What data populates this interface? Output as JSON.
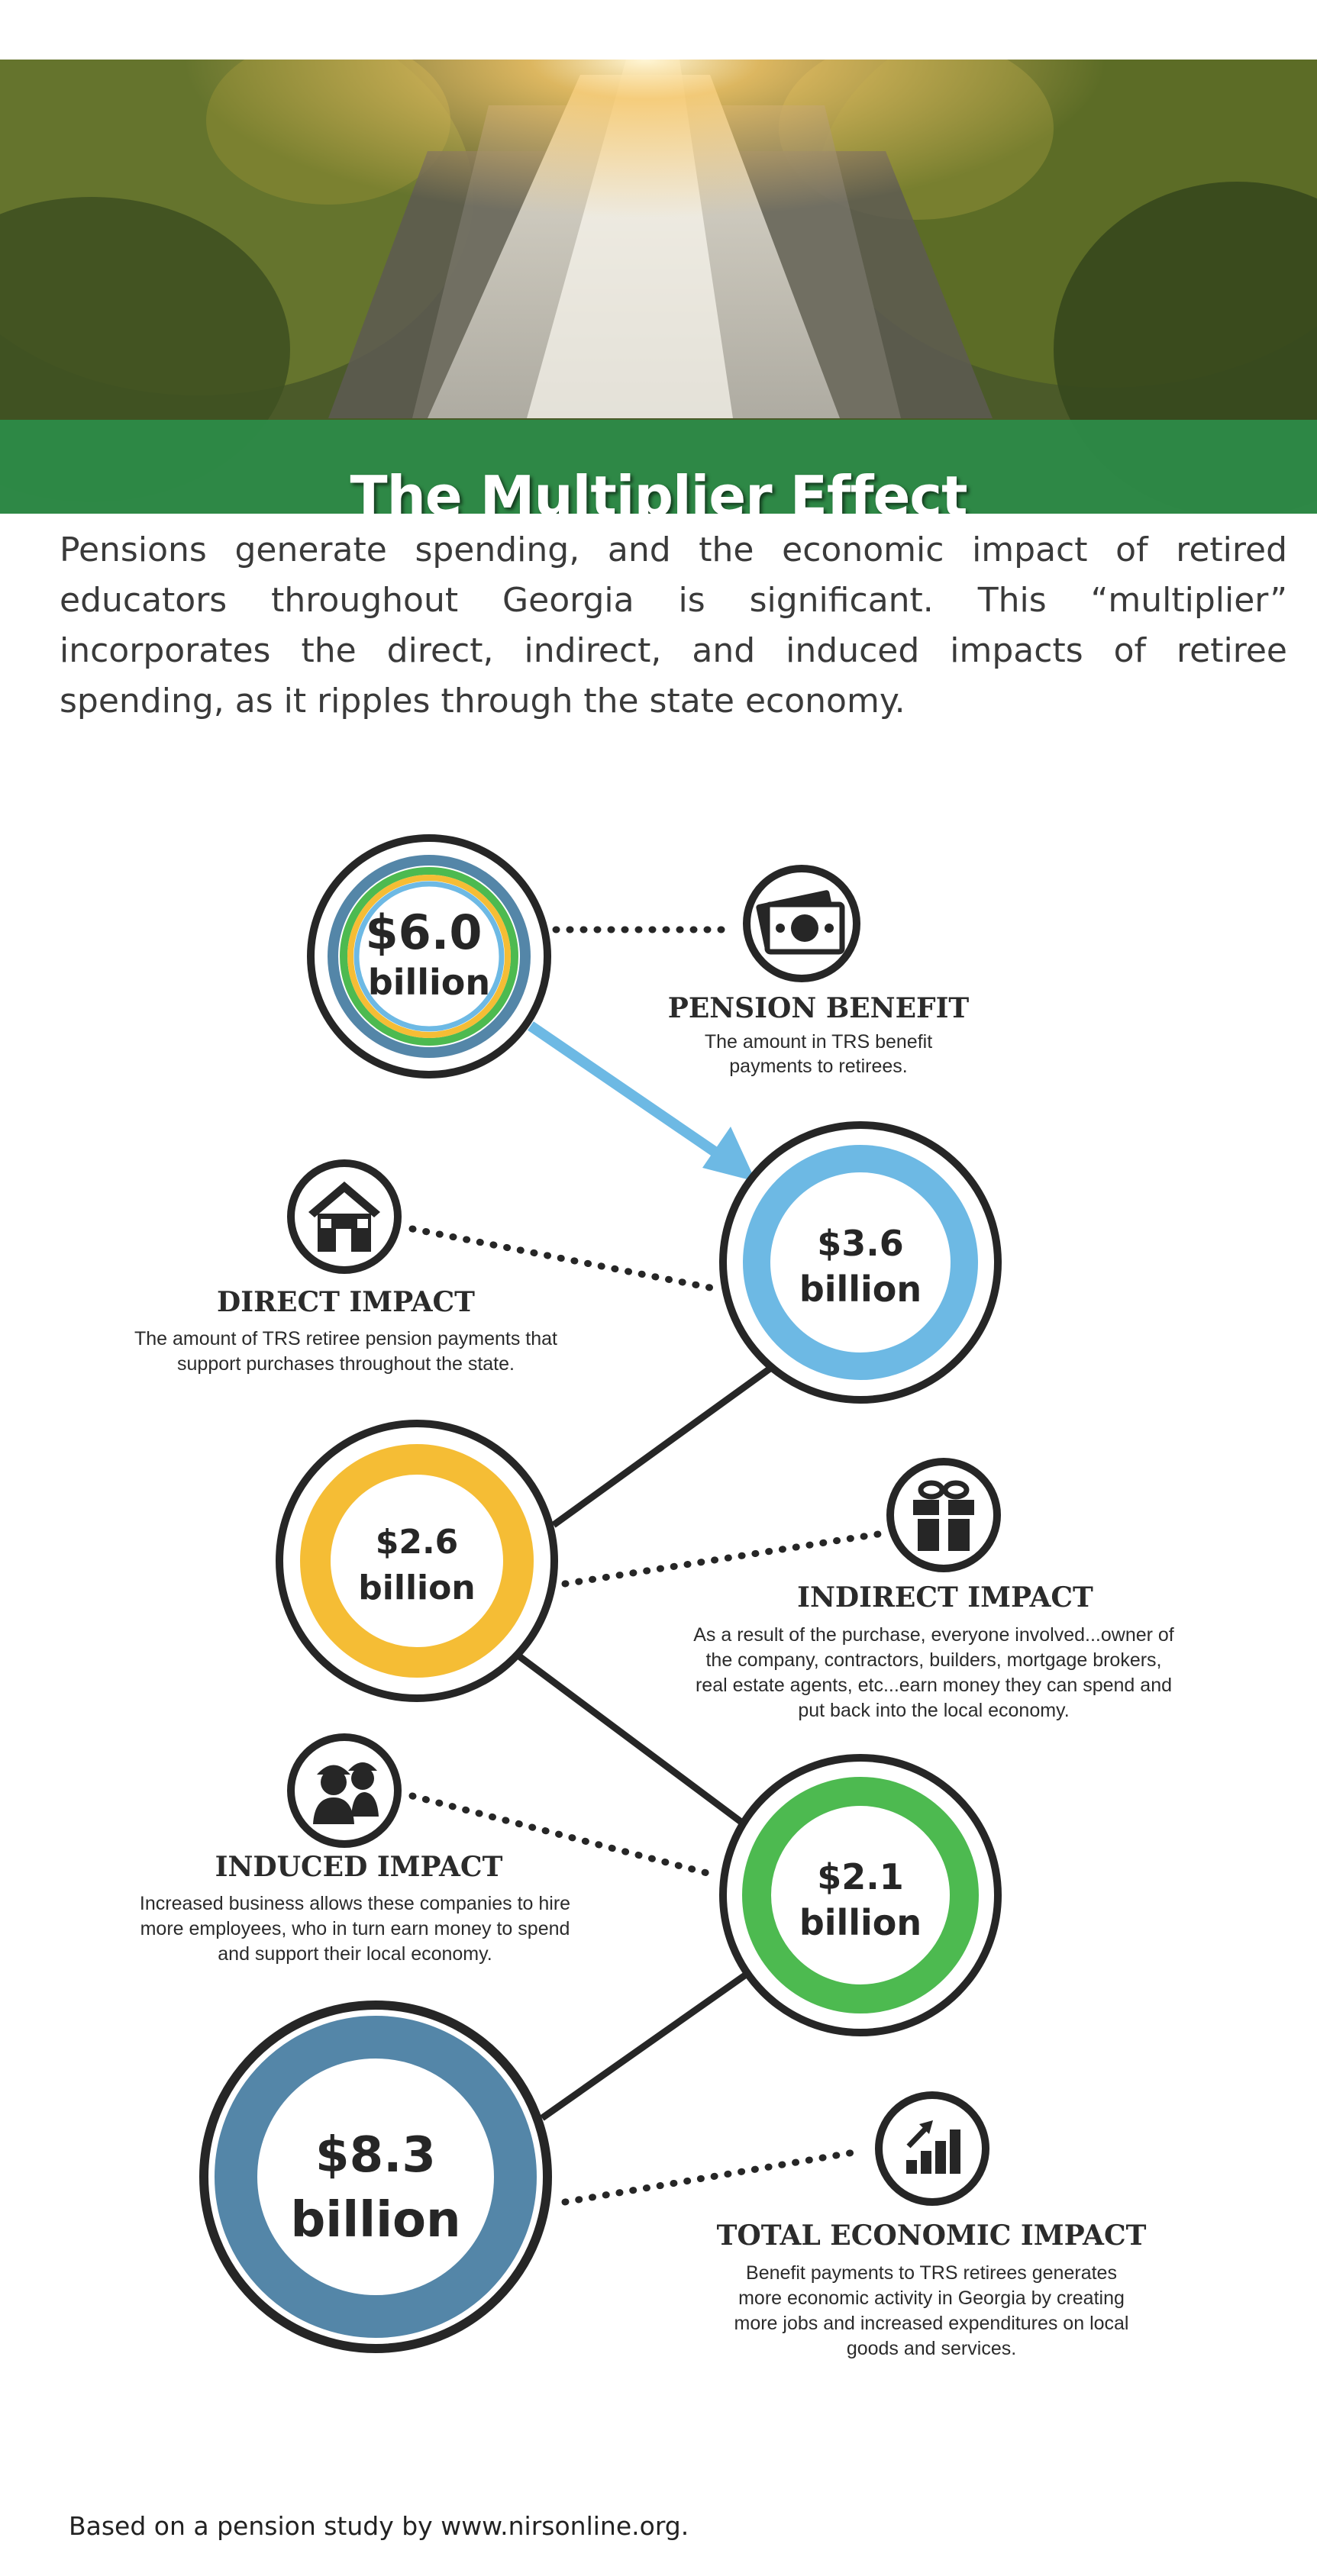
{
  "title": "The Multiplier Effect",
  "intro": "Pensions generate spending, and the economic impact of retired educators throughout Georgia is significant. This “multiplier” incorporates the direct, indirect, and induced impacts of retiree spending, as it ripples through the state economy.",
  "colors": {
    "title_band": "#2c8c48",
    "blue": "#6db9e4",
    "yellow": "#f5bd35",
    "green": "#4dba50",
    "steel": "#5486a8",
    "outline": "#262626"
  },
  "nodes": [
    {
      "id": "pension",
      "amount": "$6.0",
      "unit": "billion",
      "ring": "multi"
    },
    {
      "id": "direct",
      "amount": "$3.6",
      "unit": "billion",
      "ring": "blue"
    },
    {
      "id": "indirect",
      "amount": "$2.6",
      "unit": "billion",
      "ring": "yellow"
    },
    {
      "id": "induced",
      "amount": "$2.1",
      "unit": "billion",
      "ring": "green"
    },
    {
      "id": "total",
      "amount": "$8.3",
      "unit": "billion",
      "ring": "steel"
    }
  ],
  "labels": [
    {
      "id": "pension",
      "icon": "money-icon",
      "heading": "PENSION BENEFIT",
      "lines": [
        "The amount in TRS benefit",
        "payments to retirees."
      ]
    },
    {
      "id": "direct",
      "icon": "house-icon",
      "heading": "DIRECT IMPACT",
      "lines": [
        "The amount of TRS retiree pension payments that",
        "support purchases throughout the state."
      ]
    },
    {
      "id": "indirect",
      "icon": "gift-icon",
      "heading": "INDIRECT IMPACT",
      "lines": [
        "As a result of the purchase, everyone involved...owner of",
        "the company, contractors, builders, mortgage brokers,",
        "real estate agents, etc...earn money they can spend and",
        "put back into the local economy."
      ]
    },
    {
      "id": "induced",
      "icon": "workers-icon",
      "heading": "INDUCED IMPACT",
      "lines": [
        "Increased business allows these companies to hire",
        "more employees, who in turn earn money to spend",
        "and support their local economy."
      ]
    },
    {
      "id": "total",
      "icon": "growth-chart-icon",
      "heading": "TOTAL ECONOMIC IMPACT",
      "lines": [
        "Benefit payments to TRS retirees generates",
        "more economic activity in Georgia by creating",
        "more jobs and increased expenditures on local",
        "goods and services."
      ]
    }
  ],
  "footer": "Based on a pension study by www.nirsonline.org."
}
